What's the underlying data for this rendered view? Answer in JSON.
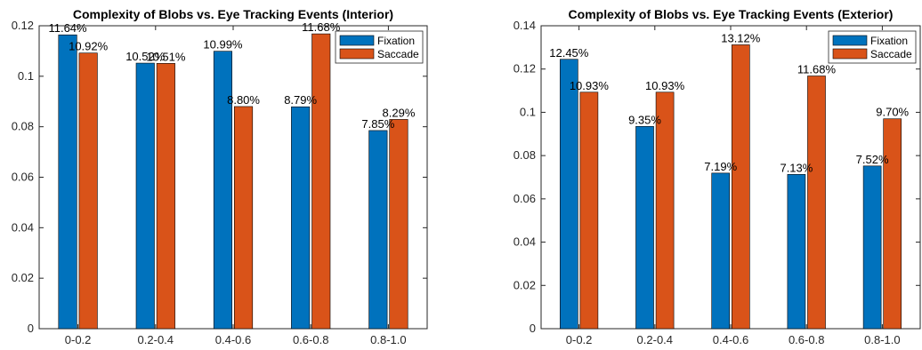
{
  "colors": {
    "fixation": "#0072BD",
    "saccade": "#D95319",
    "axis": "#262626",
    "bar_edge": "#000000",
    "background": "#ffffff"
  },
  "chart_data": [
    {
      "type": "bar",
      "title": "Complexity of Blobs vs. Eye Tracking Events (Interior)",
      "xlabel": "",
      "ylabel": "",
      "categories": [
        "0-0.2",
        "0.2-0.4",
        "0.4-0.6",
        "0.6-0.8",
        "0.8-1.0"
      ],
      "series": [
        {
          "name": "Fixation",
          "values": [
            0.1164,
            0.1052,
            0.1099,
            0.0879,
            0.0785
          ],
          "labels": [
            "11.64%",
            "10.52%",
            "10.99%",
            "8.79%",
            "7.85%"
          ]
        },
        {
          "name": "Saccade",
          "values": [
            0.1092,
            0.1051,
            0.088,
            0.1168,
            0.0829
          ],
          "labels": [
            "10.92%",
            "10.51%",
            "8.80%",
            "11.68%",
            "8.29%"
          ]
        }
      ],
      "ylim": [
        0,
        0.12
      ],
      "yticks": [
        "0",
        "0.02",
        "0.04",
        "0.06",
        "0.08",
        "0.1",
        "0.12"
      ],
      "yticks_values": [
        0,
        0.02,
        0.04,
        0.06,
        0.08,
        0.1,
        0.12
      ],
      "grid": false,
      "legend_position": "top-right"
    },
    {
      "type": "bar",
      "title": "Complexity of Blobs vs. Eye Tracking Events (Exterior)",
      "xlabel": "",
      "ylabel": "",
      "categories": [
        "0-0.2",
        "0.2-0.4",
        "0.4-0.6",
        "0.6-0.8",
        "0.8-1.0"
      ],
      "series": [
        {
          "name": "Fixation",
          "values": [
            0.1245,
            0.0935,
            0.0719,
            0.0713,
            0.0752
          ],
          "labels": [
            "12.45%",
            "9.35%",
            "7.19%",
            "7.13%",
            "7.52%"
          ]
        },
        {
          "name": "Saccade",
          "values": [
            0.1093,
            0.1093,
            0.1312,
            0.1168,
            0.097
          ],
          "labels": [
            "10.93%",
            "10.93%",
            "13.12%",
            "11.68%",
            "9.70%"
          ]
        }
      ],
      "ylim": [
        0,
        0.14
      ],
      "yticks": [
        "0",
        "0.02",
        "0.04",
        "0.06",
        "0.08",
        "0.1",
        "0.12",
        "0.14"
      ],
      "yticks_values": [
        0,
        0.02,
        0.04,
        0.06,
        0.08,
        0.1,
        0.12,
        0.14
      ],
      "grid": false,
      "legend_position": "top-right"
    }
  ]
}
